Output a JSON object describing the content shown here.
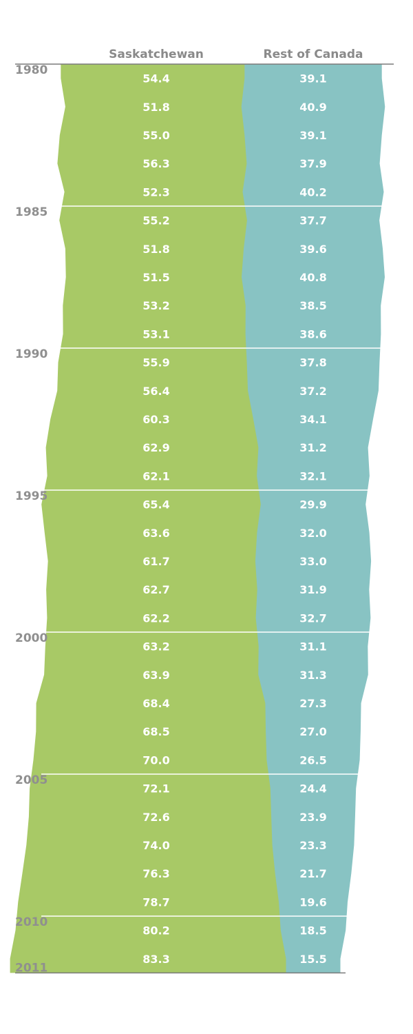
{
  "chart_data": {
    "type": "area",
    "series": [
      {
        "name": "Saskatchewan",
        "color": "#a8c966",
        "values": [
          54.4,
          51.8,
          55.0,
          56.3,
          52.3,
          55.2,
          51.8,
          51.5,
          53.2,
          53.1,
          55.9,
          56.4,
          60.3,
          62.9,
          62.1,
          65.4,
          63.6,
          61.7,
          62.7,
          62.2,
          63.2,
          63.9,
          68.4,
          68.5,
          70.0,
          72.1,
          72.6,
          74.0,
          76.3,
          78.7,
          80.2,
          83.3
        ],
        "labels": [
          "54.4",
          "51.8",
          "55.0",
          "56.3",
          "52.3",
          "55.2",
          "51.8",
          "51.5",
          "53.2",
          "53.1",
          "55.9",
          "56.4",
          "60.3",
          "62.9",
          "62.1",
          "65.4",
          "63.6",
          "61.7",
          "62.7",
          "62.2",
          "63.2",
          "63.9",
          "68.4",
          "68.5",
          "70.0",
          "72.1",
          "72.6",
          "74.0",
          "76.3",
          "78.7",
          "80.2",
          "83.3"
        ]
      },
      {
        "name": "Rest of Canada",
        "color": "#88c3c3",
        "values": [
          39.1,
          40.9,
          39.1,
          37.9,
          40.2,
          37.7,
          39.6,
          40.8,
          38.5,
          38.6,
          37.8,
          37.2,
          34.1,
          31.2,
          32.1,
          29.9,
          32.0,
          33.0,
          31.9,
          32.7,
          31.1,
          31.3,
          27.3,
          27.0,
          26.5,
          24.4,
          23.9,
          23.3,
          21.7,
          19.6,
          18.5,
          15.5
        ],
        "labels": [
          "39.1",
          "40.9",
          "39.1",
          "37.9",
          "40.2",
          "37.7",
          "39.6",
          "40.8",
          "38.5",
          "38.6",
          "37.8",
          "37.2",
          "34.1",
          "31.2",
          "32.1",
          "29.9",
          "32.0",
          "33.0",
          "31.9",
          "32.7",
          "31.1",
          "31.3",
          "27.3",
          "27.0",
          "26.5",
          "24.4",
          "23.9",
          "23.3",
          "21.7",
          "19.6",
          "18.5",
          "15.5"
        ]
      }
    ],
    "year_labels": [
      {
        "label": "1980",
        "index": 0
      },
      {
        "label": "1985",
        "index": 5
      },
      {
        "label": "1990",
        "index": 10
      },
      {
        "label": "1995",
        "index": 15
      },
      {
        "label": "2000",
        "index": 20
      },
      {
        "label": "2005",
        "index": 25
      },
      {
        "label": "2010",
        "index": 30
      },
      {
        "label": "2011",
        "index": 31
      }
    ],
    "separator_color": "#ffffff",
    "axis_color": "#7a7a7a"
  }
}
